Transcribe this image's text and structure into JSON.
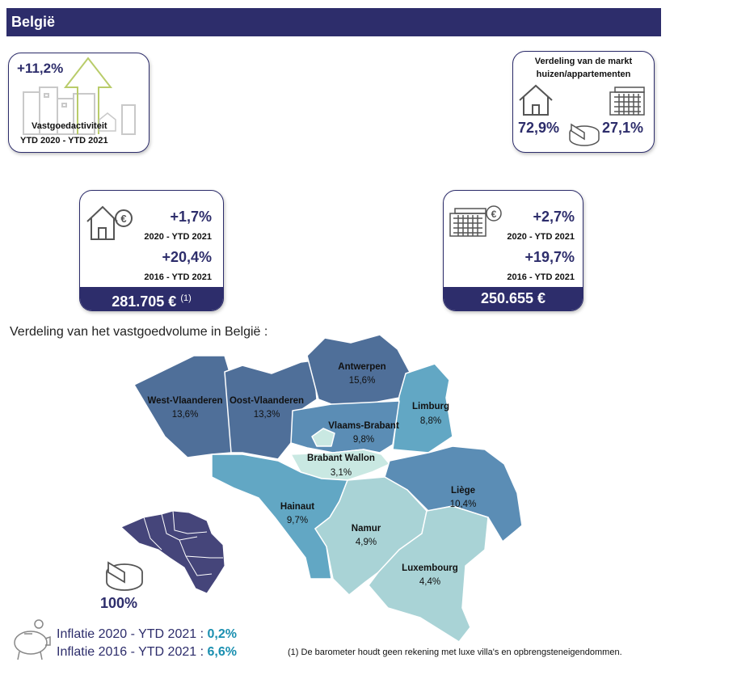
{
  "header": {
    "title": "België"
  },
  "activity_card": {
    "pct": "+11,2%",
    "label": "Vastgoedactiviteit",
    "period": "YTD 2020 - YTD 2021"
  },
  "market_card": {
    "title_line1": "Verdeling van de markt",
    "title_line2": "huizen/appartementen",
    "houses_pct": "72,9%",
    "apartments_pct": "27,1%",
    "icons": [
      "house-icon",
      "apartment-building-icon",
      "pie-chart-icon"
    ]
  },
  "house_price_card": {
    "pct1": "+1,7%",
    "period1": "2020 - YTD 2021",
    "pct2": "+20,4%",
    "period2": "2016 - YTD 2021",
    "price": "281.705 €",
    "note_ref": "(1)"
  },
  "apartment_price_card": {
    "pct1": "+2,7%",
    "period1": "2020 - YTD 2021",
    "pct2": "+19,7%",
    "period2": "2016 - YTD 2021",
    "price": "250.655 €"
  },
  "map": {
    "title": "Verdeling van het vastgoedvolume in België :",
    "total": "100%",
    "colors": {
      "dark": "#4f6f99",
      "mid": "#5b8db5",
      "teal": "#62a7c4",
      "light": "#a9d3d6",
      "pale": "#c9e8e2"
    },
    "provinces": [
      {
        "name": "Antwerpen",
        "value": "15,6%"
      },
      {
        "name": "Limburg",
        "value": "8,8%"
      },
      {
        "name": "West-Vlaanderen",
        "value": "13,6%"
      },
      {
        "name": "Oost-Vlaanderen",
        "value": "13,3%"
      },
      {
        "name": "Vlaams-Brabant",
        "value": "9,8%"
      },
      {
        "name": "Brabant Wallon",
        "value": "3,1%"
      },
      {
        "name": "Hainaut",
        "value": "9,7%"
      },
      {
        "name": "Liège",
        "value": "10,4%"
      },
      {
        "name": "Namur",
        "value": "4,9%"
      },
      {
        "name": "Luxembourg",
        "value": "4,4%"
      }
    ]
  },
  "inflation": [
    {
      "label": "Inflatie 2020 - YTD 2021 : ",
      "value": "0,2%"
    },
    {
      "label": "Inflatie 2016 - YTD 2021 : ",
      "value": "6,6%"
    }
  ],
  "footnote": "(1) De barometer houdt geen rekening met luxe villa's en opbrengsteneigendommen."
}
